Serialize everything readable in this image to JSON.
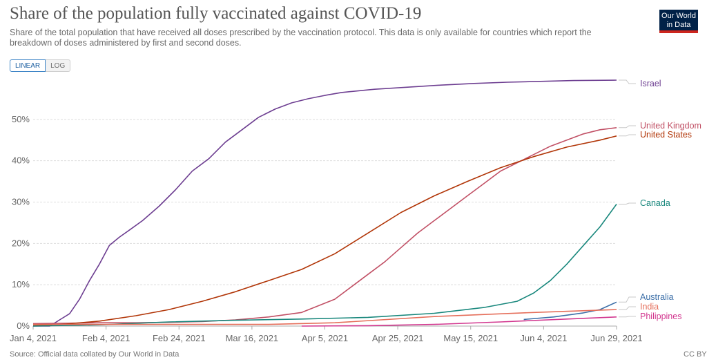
{
  "title": "Share of the population fully vaccinated against COVID-19",
  "subtitle": "Share of the total population that have received all doses prescribed by the vaccination protocol. This data is only available for countries which report the breakdown of doses administered by first and second doses.",
  "logo": {
    "line1": "Our World",
    "line2": "in Data"
  },
  "scale_toggle": {
    "linear": "LINEAR",
    "log": "LOG"
  },
  "source": "Source: Official data collated by Our World in Data",
  "license": "CC BY",
  "chart_data": {
    "type": "line",
    "title": "Share of the population fully vaccinated against COVID-19",
    "x_ticks": [
      "Jan 4, 2021",
      "Feb 4, 2021",
      "Feb 24, 2021",
      "Mar 16, 2021",
      "Apr 5, 2021",
      "Apr 25, 2021",
      "May 15, 2021",
      "Jun 4, 2021",
      "Jun 29, 2021"
    ],
    "y_ticks": [
      "0%",
      "10%",
      "20%",
      "30%",
      "40%",
      "50%"
    ],
    "ylim": [
      0,
      60
    ],
    "grid": true,
    "series": [
      {
        "name": "Israel",
        "color": "#6d3e91",
        "x": [
          "2021-01-04",
          "2021-01-09",
          "2021-01-12",
          "2021-01-15",
          "2021-01-18",
          "2021-01-21",
          "2021-01-24",
          "2021-01-27",
          "2021-01-30",
          "2021-02-02",
          "2021-02-06",
          "2021-02-11",
          "2021-02-16",
          "2021-02-21",
          "2021-02-26",
          "2021-03-03",
          "2021-03-08",
          "2021-03-13",
          "2021-03-18",
          "2021-03-23",
          "2021-03-28",
          "2021-04-02",
          "2021-04-07",
          "2021-04-17",
          "2021-04-27",
          "2021-05-07",
          "2021-05-17",
          "2021-05-27",
          "2021-06-06",
          "2021-06-16",
          "2021-06-29"
        ],
        "values": [
          0,
          0,
          1.5,
          3,
          6.5,
          11,
          15,
          19.5,
          21.5,
          23.2,
          25.5,
          29,
          33,
          37.5,
          40.5,
          44.5,
          47.5,
          50.5,
          52.5,
          54,
          55,
          55.8,
          56.5,
          57.3,
          57.8,
          58.3,
          58.7,
          59,
          59.2,
          59.4,
          59.5
        ]
      },
      {
        "name": "United Kingdom",
        "color": "#c15065",
        "x": [
          "2021-01-04",
          "2021-01-24",
          "2021-02-04",
          "2021-02-14",
          "2021-02-24",
          "2021-03-06",
          "2021-03-16",
          "2021-03-26",
          "2021-04-05",
          "2021-04-10",
          "2021-04-15",
          "2021-04-20",
          "2021-04-25",
          "2021-04-30",
          "2021-05-05",
          "2021-05-10",
          "2021-05-15",
          "2021-05-20",
          "2021-05-25",
          "2021-05-30",
          "2021-06-04",
          "2021-06-09",
          "2021-06-14",
          "2021-06-19",
          "2021-06-24",
          "2021-06-29"
        ],
        "values": [
          0.6,
          0.8,
          0.8,
          0.9,
          1.1,
          1.5,
          2.2,
          3.3,
          6.5,
          9.5,
          12.5,
          15.5,
          19,
          22.5,
          25.5,
          28.5,
          31.5,
          34.5,
          37.5,
          39.5,
          41.5,
          43.5,
          45,
          46.5,
          47.5,
          48
        ]
      },
      {
        "name": "United States",
        "color": "#b13507",
        "x": [
          "2021-01-04",
          "2021-01-14",
          "2021-01-24",
          "2021-02-04",
          "2021-02-14",
          "2021-02-24",
          "2021-03-06",
          "2021-03-16",
          "2021-03-26",
          "2021-04-05",
          "2021-04-15",
          "2021-04-25",
          "2021-05-05",
          "2021-05-15",
          "2021-05-25",
          "2021-06-04",
          "2021-06-14",
          "2021-06-24",
          "2021-06-29"
        ],
        "values": [
          0.1,
          0.5,
          1.2,
          2.5,
          4,
          6,
          8.3,
          11,
          13.7,
          17.5,
          22.5,
          27.5,
          31.5,
          35,
          38.3,
          41,
          43.3,
          45,
          46
        ]
      },
      {
        "name": "Canada",
        "color": "#18877c",
        "x": [
          "2021-01-04",
          "2021-01-24",
          "2021-02-14",
          "2021-03-06",
          "2021-03-26",
          "2021-04-15",
          "2021-05-05",
          "2021-05-20",
          "2021-05-30",
          "2021-06-04",
          "2021-06-09",
          "2021-06-14",
          "2021-06-19",
          "2021-06-24",
          "2021-06-29"
        ],
        "values": [
          0,
          0.3,
          1,
          1.4,
          1.7,
          2.1,
          3.1,
          4.5,
          6,
          8,
          11,
          15,
          19.5,
          24,
          29.5
        ]
      },
      {
        "name": "Australia",
        "color": "#3c6fa8",
        "x": [
          "2021-06-01",
          "2021-06-10",
          "2021-06-19",
          "2021-06-24",
          "2021-06-29"
        ],
        "values": [
          1.6,
          2.2,
          3.2,
          4,
          5.8
        ]
      },
      {
        "name": "India",
        "color": "#e56e5a",
        "x": [
          "2021-01-04",
          "2021-03-16",
          "2021-04-05",
          "2021-05-05",
          "2021-06-04",
          "2021-06-29"
        ],
        "values": [
          0.4,
          0.4,
          0.8,
          2.3,
          3.3,
          4
        ]
      },
      {
        "name": "Philippines",
        "color": "#d2378f",
        "x": [
          "2021-03-26",
          "2021-04-15",
          "2021-05-05",
          "2021-05-25",
          "2021-06-14",
          "2021-06-29"
        ],
        "values": [
          0,
          0.1,
          0.4,
          1,
          1.7,
          2.2
        ]
      }
    ]
  }
}
